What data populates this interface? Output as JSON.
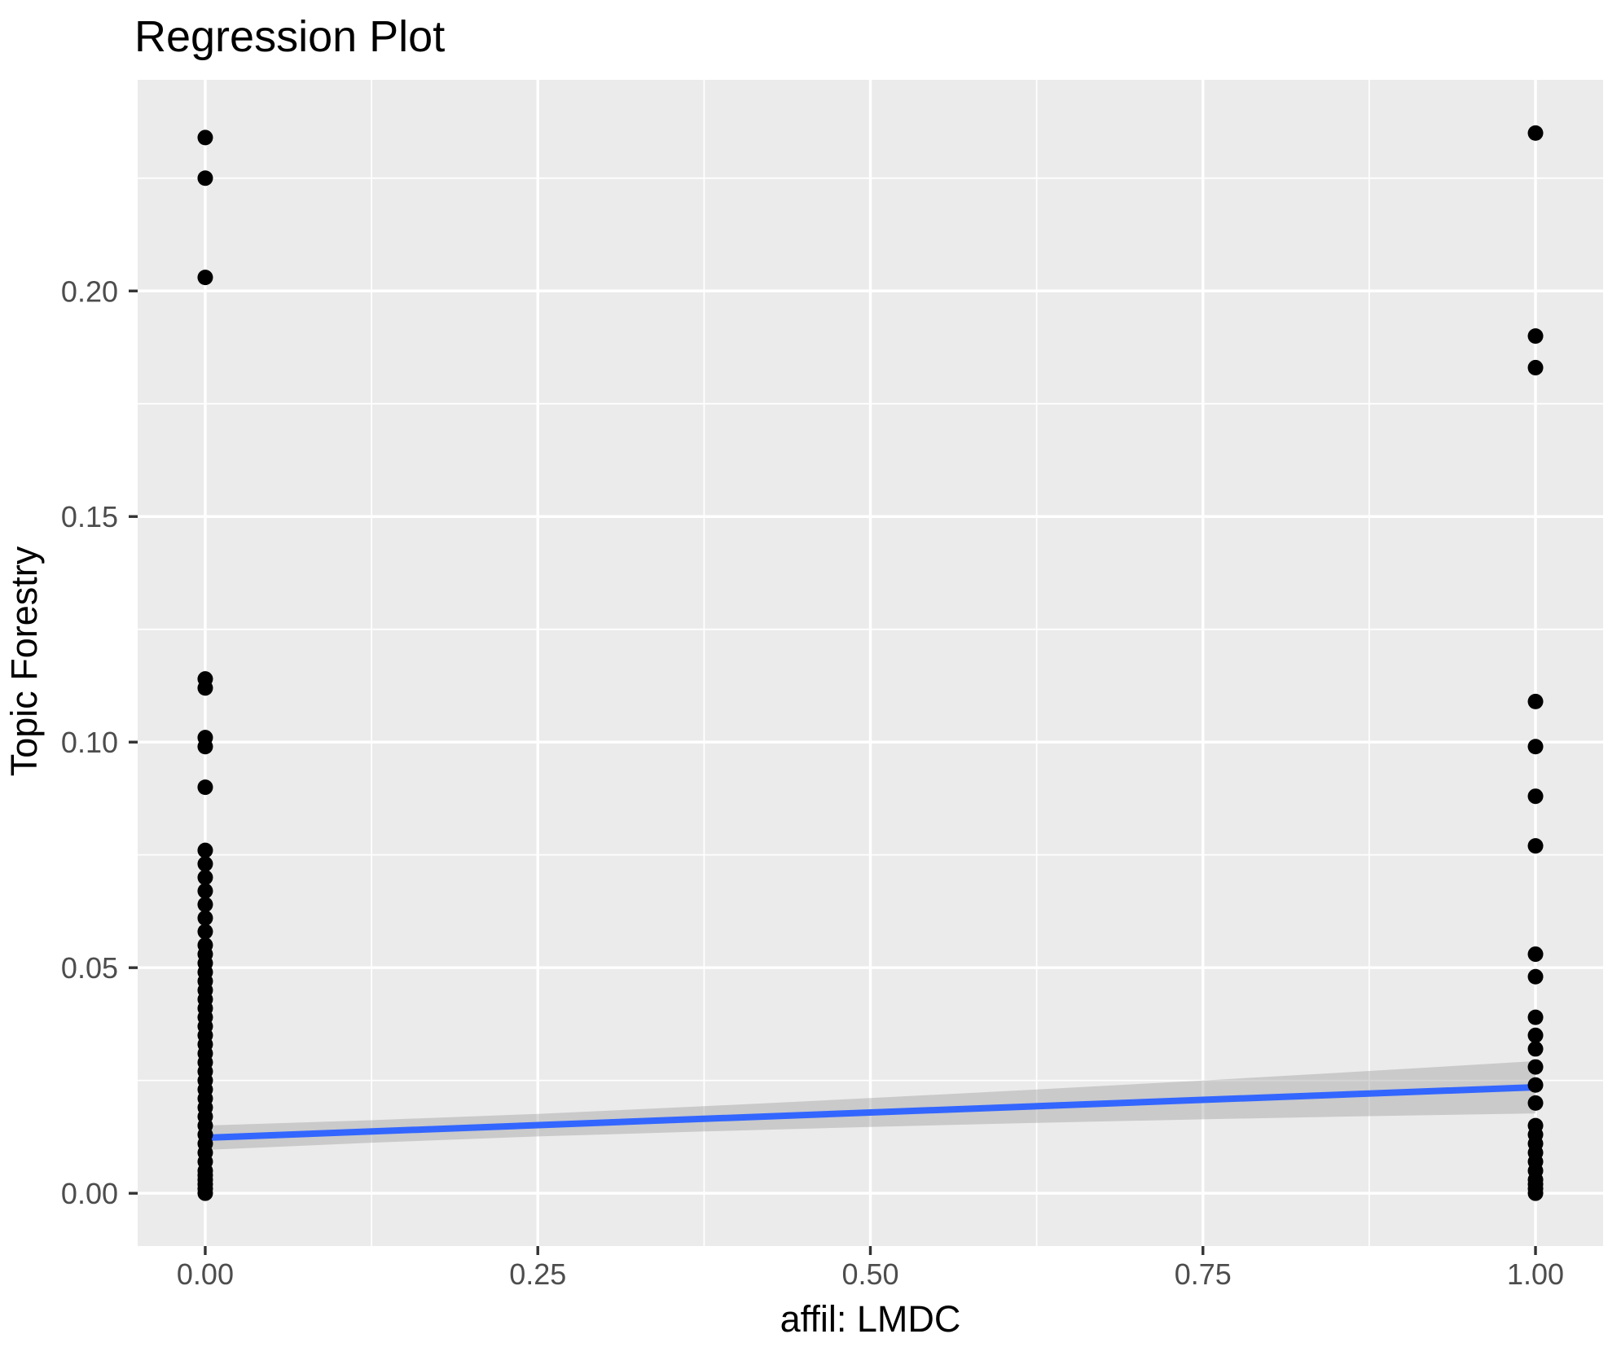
{
  "chart_data": {
    "type": "scatter",
    "title": "Regression Plot",
    "xlabel": "affil: LMDC",
    "ylabel": "Topic Forestry",
    "xlim": [
      -0.0508,
      1.0508
    ],
    "ylim": [
      -0.0117,
      0.2468
    ],
    "grid": "major and minor white gridlines on gray panel",
    "legend": "none",
    "x_ticks": [
      {
        "value": 0.0,
        "label": "0.00"
      },
      {
        "value": 0.25,
        "label": "0.25"
      },
      {
        "value": 0.5,
        "label": "0.50"
      },
      {
        "value": 0.75,
        "label": "0.75"
      },
      {
        "value": 1.0,
        "label": "1.00"
      }
    ],
    "y_ticks": [
      {
        "value": 0.0,
        "label": "0.00"
      },
      {
        "value": 0.05,
        "label": "0.05"
      },
      {
        "value": 0.1,
        "label": "0.10"
      },
      {
        "value": 0.15,
        "label": "0.15"
      },
      {
        "value": 0.2,
        "label": "0.20"
      }
    ],
    "series": [
      {
        "name": "affil: LMDC = 0",
        "x": 0,
        "y": [
          0.234,
          0.225,
          0.203,
          0.114,
          0.112,
          0.101,
          0.099,
          0.09,
          0.076,
          0.073,
          0.07,
          0.067,
          0.064,
          0.061,
          0.058,
          0.055,
          0.053,
          0.051,
          0.049,
          0.047,
          0.045,
          0.043,
          0.041,
          0.039,
          0.037,
          0.035,
          0.033,
          0.031,
          0.029,
          0.027,
          0.025,
          0.023,
          0.021,
          0.019,
          0.017,
          0.015,
          0.013,
          0.011,
          0.009,
          0.007,
          0.005,
          0.004,
          0.003,
          0.002,
          0.001,
          0.0
        ]
      },
      {
        "name": "affil: LMDC = 1",
        "x": 1,
        "y": [
          0.235,
          0.19,
          0.183,
          0.109,
          0.099,
          0.088,
          0.077,
          0.053,
          0.048,
          0.039,
          0.035,
          0.032,
          0.028,
          0.024,
          0.02,
          0.015,
          0.013,
          0.011,
          0.009,
          0.007,
          0.005,
          0.003,
          0.002,
          0.001,
          0.0
        ]
      }
    ],
    "smooth": {
      "method": "lm",
      "line": {
        "x": [
          0,
          1
        ],
        "y": [
          0.0123,
          0.0235
        ]
      },
      "ribbon": {
        "x": [
          0,
          0.125,
          0.25,
          0.375,
          0.5,
          0.625,
          0.75,
          0.875,
          1.0
        ],
        "upper": [
          0.015,
          0.0162,
          0.0176,
          0.0193,
          0.0211,
          0.023,
          0.025,
          0.0271,
          0.0293
        ],
        "lower": [
          0.0096,
          0.0112,
          0.0126,
          0.0137,
          0.0147,
          0.0156,
          0.0164,
          0.0171,
          0.0177
        ]
      }
    },
    "colors": {
      "panel_bg": "#EBEBEB",
      "grid": "#FFFFFF",
      "point": "#000000",
      "smooth_line": "#3366FF",
      "ribbon": "rgba(153,153,153,0.4)",
      "axis_text": "#4D4D4D",
      "tick": "#333333",
      "title": "#000000"
    }
  }
}
